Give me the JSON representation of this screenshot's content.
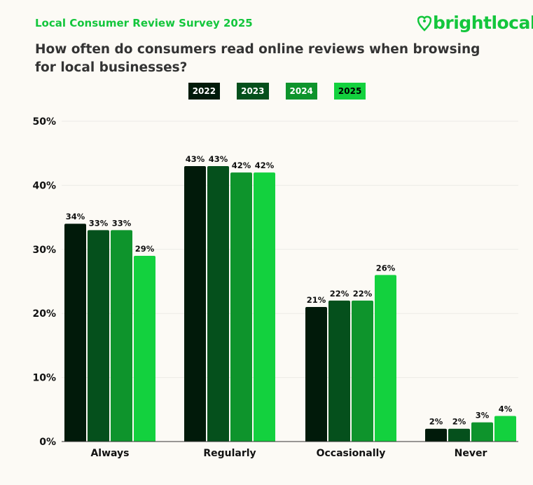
{
  "header": {
    "survey": "Local Consumer Review Survey 2025",
    "logo": "brightlocal",
    "title": "How often do consumers read online reviews when browsing for local businesses?"
  },
  "colors": {
    "background": "#fcfaf5",
    "accent": "#13c63c"
  },
  "chart_data": {
    "type": "bar",
    "title": "How often do consumers read online reviews when browsing for local businesses?",
    "categories": [
      "Always",
      "Regularly",
      "Occasionally",
      "Never"
    ],
    "series": [
      {
        "name": "2022",
        "color": "#011a0a",
        "text": "#ffffff",
        "values": [
          34,
          43,
          21,
          2
        ]
      },
      {
        "name": "2023",
        "color": "#05501c",
        "text": "#ffffff",
        "values": [
          33,
          43,
          22,
          2
        ]
      },
      {
        "name": "2024",
        "color": "#0e942c",
        "text": "#ffffff",
        "values": [
          33,
          42,
          22,
          3
        ]
      },
      {
        "name": "2025",
        "color": "#13d13e",
        "text": "#000000",
        "values": [
          29,
          42,
          26,
          4
        ]
      }
    ],
    "yticks": [
      "0%",
      "10%",
      "20%",
      "30%",
      "40%",
      "50%"
    ],
    "ylim": [
      0,
      50
    ],
    "grid": true,
    "legend": "top-center",
    "data_labels": true
  }
}
